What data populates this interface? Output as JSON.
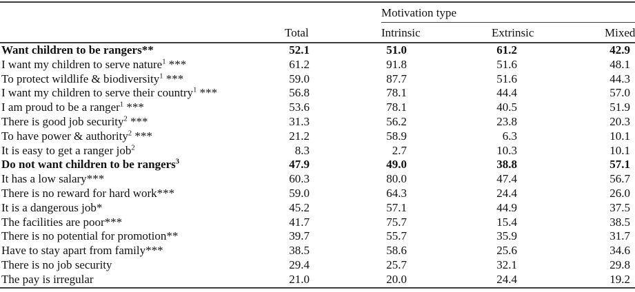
{
  "table": {
    "span_header": "Motivation type",
    "columns": [
      "Total",
      "Intrinsic",
      "Extrinsic",
      "Mixed"
    ],
    "rows": [
      {
        "label": "Want children to be rangers",
        "sup": "",
        "stars": "**",
        "bold": true,
        "values": [
          "52.1",
          "51.0",
          "61.2",
          "42.9"
        ]
      },
      {
        "label": "I want my children to serve nature",
        "sup": "1",
        "stars": "***",
        "bold": false,
        "values": [
          "61.2",
          "91.8",
          "51.6",
          "48.1"
        ]
      },
      {
        "label": "To protect wildlife & biodiversity",
        "sup": "1",
        "stars": "***",
        "bold": false,
        "values": [
          "59.0",
          "87.7",
          "51.6",
          "44.3"
        ]
      },
      {
        "label": "I want my children to serve their country",
        "sup": "1",
        "stars": "***",
        "bold": false,
        "values": [
          "56.8",
          "78.1",
          "44.4",
          "57.0"
        ]
      },
      {
        "label": "I am proud to be a ranger",
        "sup": "1",
        "stars": "***",
        "bold": false,
        "values": [
          "53.6",
          "78.1",
          "40.5",
          "51.9"
        ]
      },
      {
        "label": "There is good job security",
        "sup": "2",
        "stars": "***",
        "bold": false,
        "values": [
          "31.3",
          "56.2",
          "23.8",
          "20.3"
        ]
      },
      {
        "label": "To have power & authority",
        "sup": "2",
        "stars": "***",
        "bold": false,
        "values": [
          "21.2",
          "58.9",
          "6.3",
          "10.1"
        ]
      },
      {
        "label": "It is easy to get a ranger job",
        "sup": "2",
        "stars": "",
        "bold": false,
        "values": [
          "8.3",
          "2.7",
          "10.3",
          "10.1"
        ]
      },
      {
        "label": "Do not want children to be rangers",
        "sup": "3",
        "stars": "",
        "bold": true,
        "values": [
          "47.9",
          "49.0",
          "38.8",
          "57.1"
        ]
      },
      {
        "label": "It has a low salary",
        "sup": "",
        "stars": "***",
        "bold": false,
        "values": [
          "60.3",
          "80.0",
          "47.4",
          "56.7"
        ]
      },
      {
        "label": "There is no reward for hard work",
        "sup": "",
        "stars": "***",
        "bold": false,
        "values": [
          "59.0",
          "64.3",
          "24.4",
          "26.0"
        ]
      },
      {
        "label": "It is a dangerous job",
        "sup": "",
        "stars": "*",
        "bold": false,
        "values": [
          "45.2",
          "57.1",
          "44.9",
          "37.5"
        ]
      },
      {
        "label": "The facilities are poor",
        "sup": "",
        "stars": "***",
        "bold": false,
        "values": [
          "41.7",
          "75.7",
          "15.4",
          "38.5"
        ]
      },
      {
        "label": "There is no potential for promotion",
        "sup": "",
        "stars": "**",
        "bold": false,
        "values": [
          "39.7",
          "55.7",
          "35.9",
          "31.7"
        ]
      },
      {
        "label": "Have to stay apart from family",
        "sup": "",
        "stars": "***",
        "bold": false,
        "values": [
          "38.5",
          "58.6",
          "25.6",
          "34.6"
        ]
      },
      {
        "label": "There is no job security",
        "sup": "",
        "stars": "",
        "bold": false,
        "values": [
          "29.4",
          "25.7",
          "32.1",
          "29.8"
        ]
      },
      {
        "label": "The pay is irregular",
        "sup": "",
        "stars": "",
        "bold": false,
        "values": [
          "21.0",
          "20.0",
          "24.4",
          "19.2"
        ]
      }
    ]
  },
  "colors": {
    "text": "#111111",
    "rule": "#3a3a3a",
    "background": "#ffffff"
  }
}
